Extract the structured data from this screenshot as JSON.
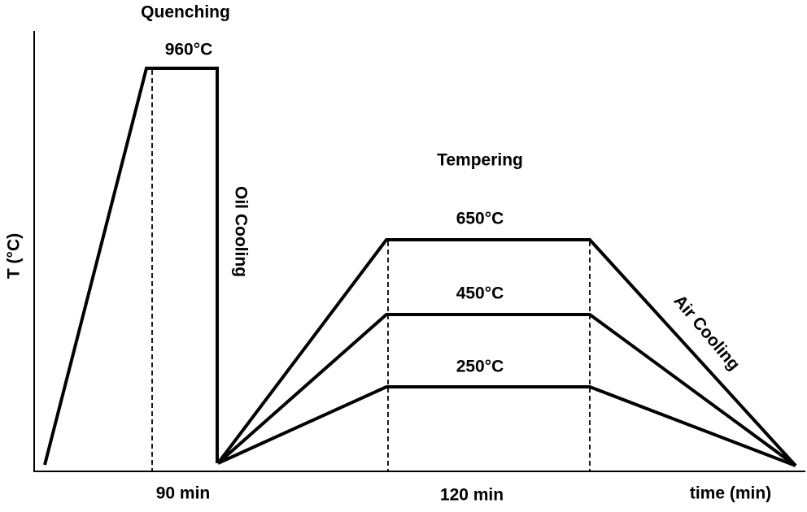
{
  "diagram": {
    "y_axis_label": "T (°C)",
    "x_axis_label": "time (min)",
    "quenching": {
      "title": "Quenching",
      "temperature": "960°C",
      "duration": "90 min",
      "cooling": "Oil Cooling"
    },
    "tempering": {
      "title": "Tempering",
      "temperatures": [
        "650°C",
        "450°C",
        "250°C"
      ],
      "duration": "120 min",
      "cooling": "Air Cooling"
    }
  }
}
